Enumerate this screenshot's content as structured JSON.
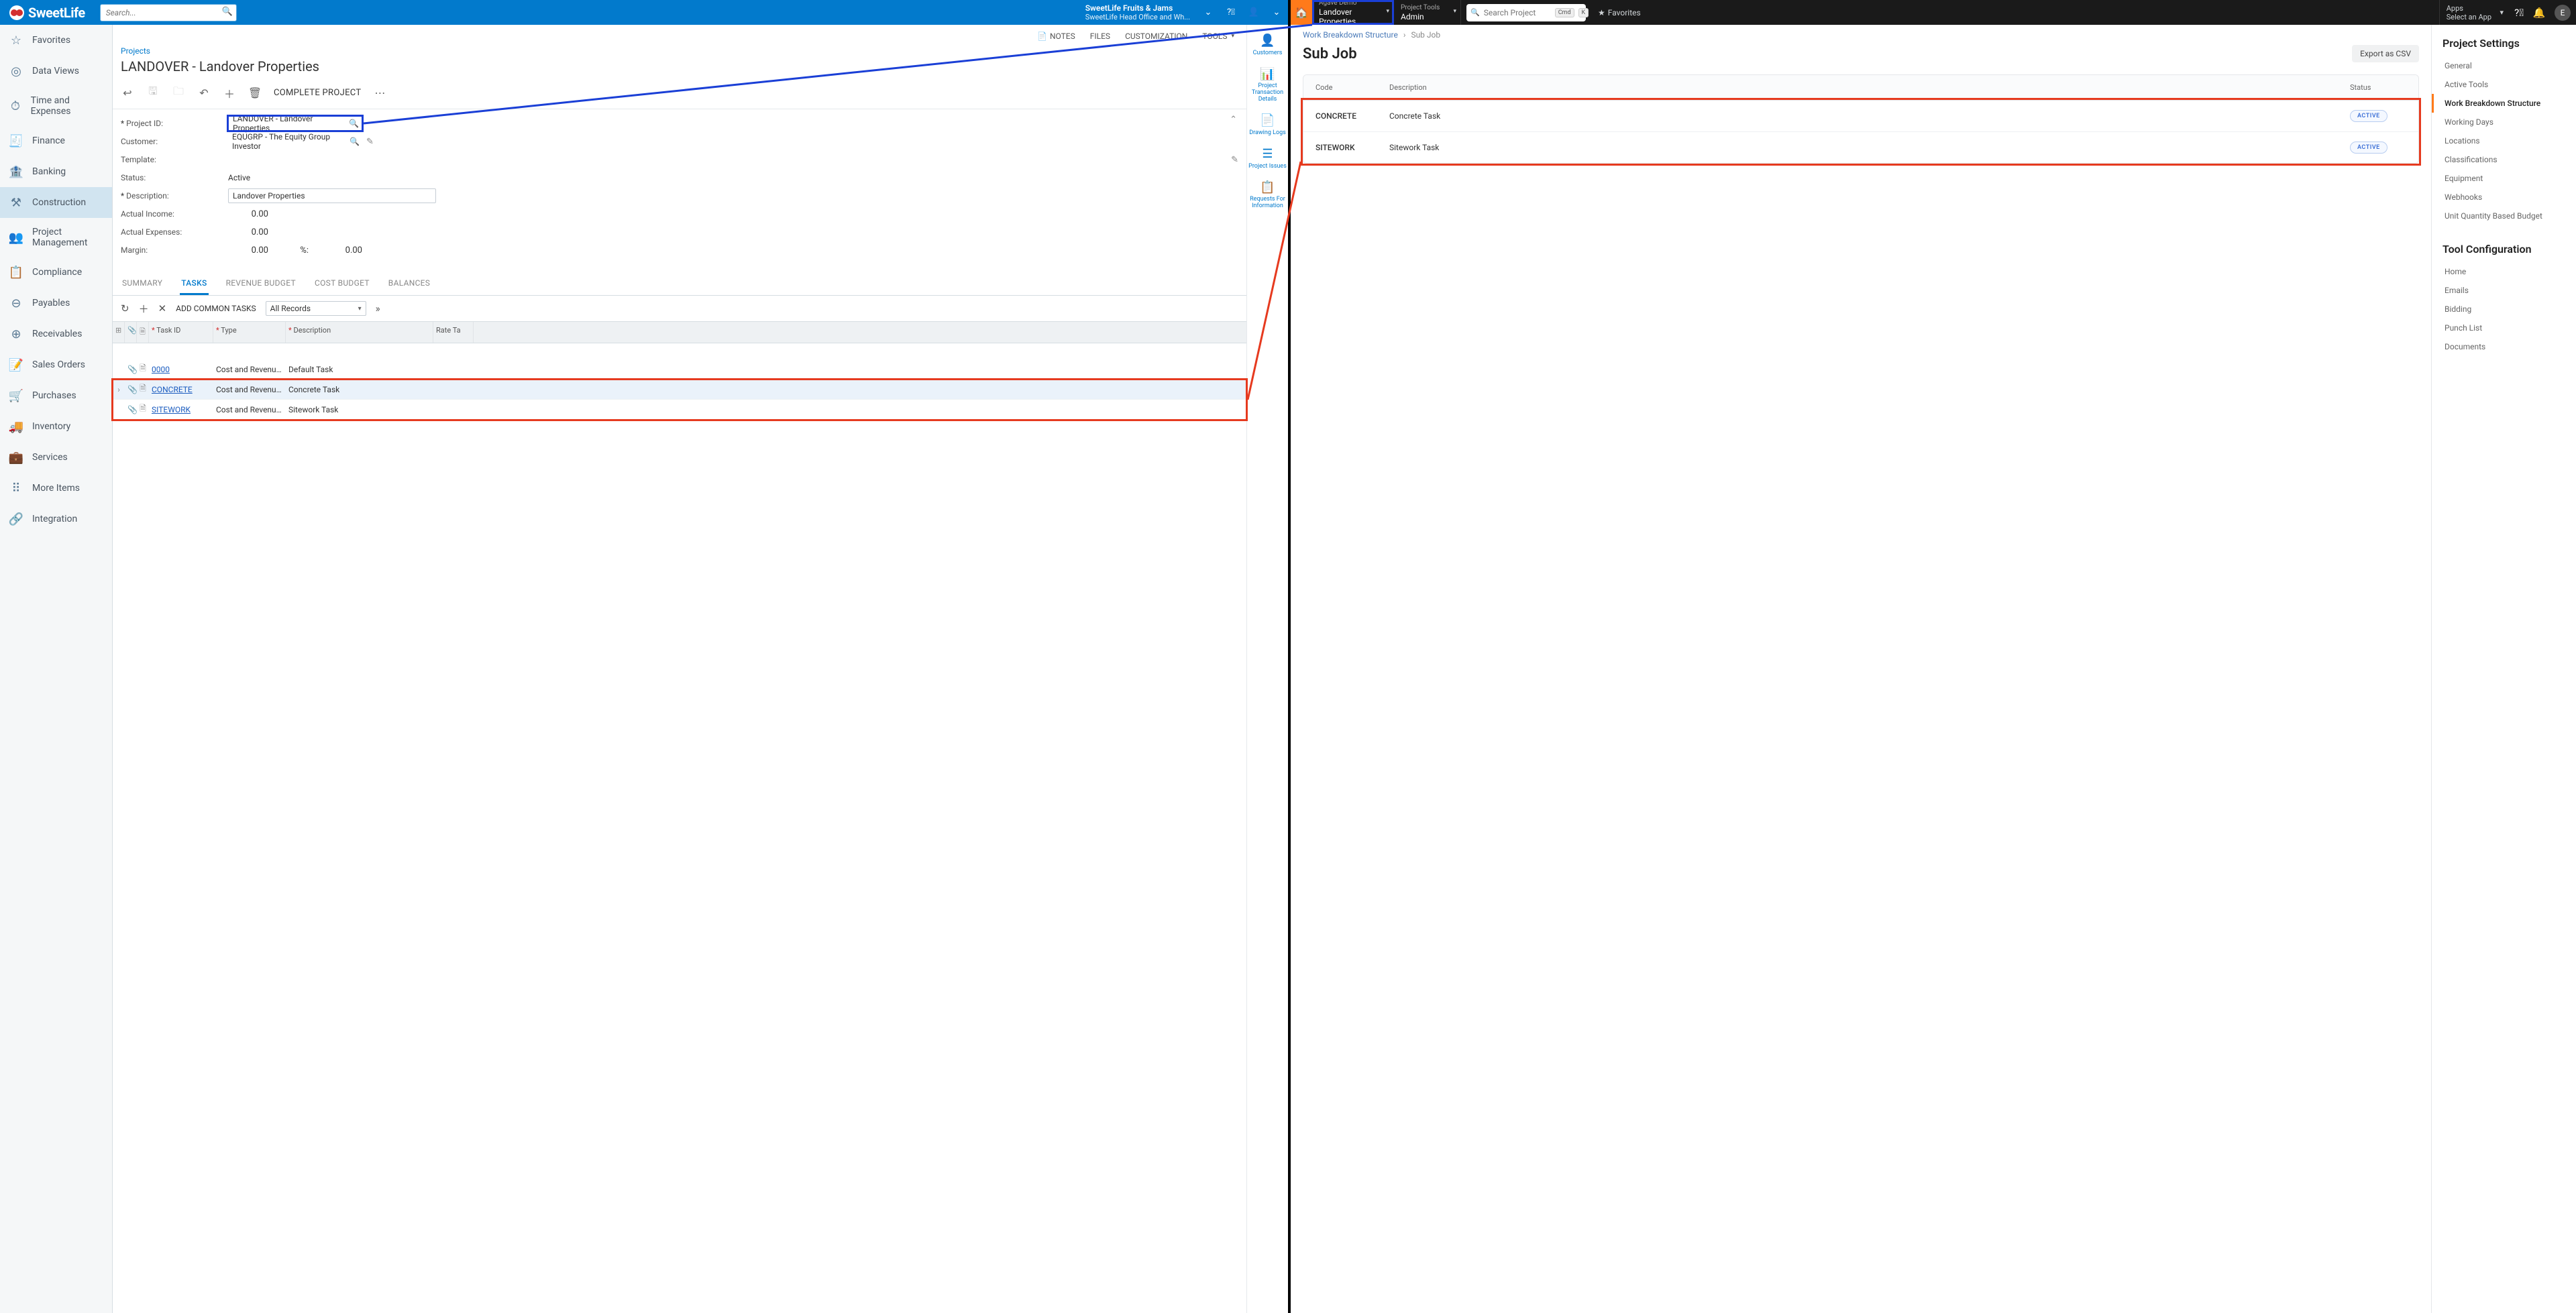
{
  "left": {
    "brand": "SweetLife",
    "search_placeholder": "Search...",
    "tenant": {
      "title": "SweetLife Fruits & Jams",
      "sub": "SweetLife Head Office and Wh..."
    },
    "nav": [
      {
        "label": "Favorites",
        "icon": "☆"
      },
      {
        "label": "Data Views",
        "icon": "◎"
      },
      {
        "label": "Time and Expenses",
        "icon": "⏱"
      },
      {
        "label": "Finance",
        "icon": "🧾"
      },
      {
        "label": "Banking",
        "icon": "🏦"
      },
      {
        "label": "Construction",
        "icon": "⚒",
        "active": true
      },
      {
        "label": "Project Management",
        "icon": "👥"
      },
      {
        "label": "Compliance",
        "icon": "📋"
      },
      {
        "label": "Payables",
        "icon": "⊖"
      },
      {
        "label": "Receivables",
        "icon": "⊕"
      },
      {
        "label": "Sales Orders",
        "icon": "📝"
      },
      {
        "label": "Purchases",
        "icon": "🛒"
      },
      {
        "label": "Inventory",
        "icon": "🚚"
      },
      {
        "label": "Services",
        "icon": "💼"
      },
      {
        "label": "More Items",
        "icon": "⠿"
      },
      {
        "label": "Integration",
        "icon": "🔗"
      }
    ],
    "toolbar": [
      {
        "label": "NOTES",
        "icon": "📄",
        "dd": false
      },
      {
        "label": "FILES",
        "dd": false
      },
      {
        "label": "CUSTOMIZATION",
        "dd": false
      },
      {
        "label": "TOOLS",
        "dd": true
      }
    ],
    "breadcrumb": "Projects",
    "page_title": "LANDOVER - Landover Properties",
    "complete_label": "COMPLETE PROJECT",
    "form": {
      "project_id_label": "Project ID:",
      "project_id": "LANDOVER - Landover Properties",
      "customer_label": "Customer:",
      "customer": "EQUGRP - The Equity Group Investor",
      "template_label": "Template:",
      "status_label": "Status:",
      "status": "Active",
      "description_label": "Description:",
      "description": "Landover Properties",
      "actual_income_label": "Actual Income:",
      "actual_income": "0.00",
      "actual_expenses_label": "Actual Expenses:",
      "actual_expenses": "0.00",
      "margin_label": "Margin:",
      "margin": "0.00",
      "pct_label": "%:",
      "pct": "0.00"
    },
    "tabs": [
      "SUMMARY",
      "TASKS",
      "REVENUE BUDGET",
      "COST BUDGET",
      "BALANCES"
    ],
    "tabs_active": 1,
    "grid": {
      "add_common": "ADD COMMON TASKS",
      "filter": "All Records",
      "headers": {
        "task_id": "Task ID",
        "type": "Type",
        "description": "Description",
        "rate": "Rate Ta"
      },
      "rows": [
        {
          "id": "0000",
          "type": "Cost and Revenue…",
          "desc": "Default Task",
          "link": true
        },
        {
          "id": "CONCRETE",
          "type": "Cost and Revenue…",
          "desc": "Concrete Task",
          "link": true,
          "sel": true,
          "expand": true
        },
        {
          "id": "SITEWORK",
          "type": "Cost and Revenue…",
          "desc": "Sitework Task",
          "link": true
        }
      ]
    },
    "side_actions": [
      {
        "label": "Customers",
        "icon": "👤"
      },
      {
        "label": "Project Transaction Details",
        "icon": "📊"
      },
      {
        "label": "Drawing Logs",
        "icon": "📄"
      },
      {
        "label": "Project Issues",
        "icon": "☰"
      },
      {
        "label": "Requests For Information",
        "icon": "📋"
      }
    ]
  },
  "right": {
    "hdr": {
      "block1_t1": "Agave Demo",
      "block1_t2": "Landover Properties",
      "block2_t1": "Project Tools",
      "block2_t2": "Admin",
      "search_placeholder": "Search Project",
      "kbd1": "Cmd",
      "kbd2": "K",
      "favorites": "Favorites",
      "apps_t1": "Apps",
      "apps_t2": "Select an App",
      "avatar": "E"
    },
    "crumb": {
      "a": "Work Breakdown Structure",
      "b": "Sub Job"
    },
    "title": "Sub Job",
    "export": "Export as CSV",
    "table": {
      "headers": {
        "code": "Code",
        "desc": "Description",
        "status": "Status"
      },
      "rows": [
        {
          "code": "CONCRETE",
          "desc": "Concrete Task",
          "status": "ACTIVE"
        },
        {
          "code": "SITEWORK",
          "desc": "Sitework Task",
          "status": "ACTIVE"
        }
      ]
    },
    "settings_title": "Project Settings",
    "settings": [
      {
        "label": "General"
      },
      {
        "label": "Active Tools"
      },
      {
        "label": "Work Breakdown Structure",
        "active": true
      },
      {
        "label": "Working Days"
      },
      {
        "label": "Locations"
      },
      {
        "label": "Classifications"
      },
      {
        "label": "Equipment"
      },
      {
        "label": "Webhooks"
      },
      {
        "label": "Unit Quantity Based Budget"
      }
    ],
    "tool_title": "Tool Configuration",
    "tool": [
      {
        "label": "Home"
      },
      {
        "label": "Emails"
      },
      {
        "label": "Bidding"
      },
      {
        "label": "Punch List"
      },
      {
        "label": "Documents"
      }
    ]
  },
  "annotations": {
    "blue_box_left": {
      "comment": "around Project ID input"
    },
    "blue_box_right": {
      "comment": "around Agave Demo / Landover Properties header block"
    },
    "red_box_left": {
      "comment": "around CONCRETE + SITEWORK task rows"
    },
    "red_box_right": {
      "comment": "around sub-job table rows"
    },
    "line_colors": {
      "blue": "#1a3fd6",
      "red": "#e63a1f"
    }
  }
}
